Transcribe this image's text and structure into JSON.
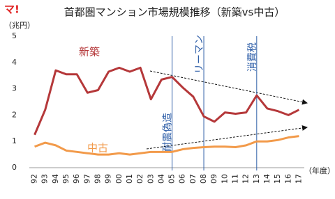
{
  "logo": "マ!",
  "chart_data": {
    "type": "line",
    "title": "首都圏マンション市場規模推移（新築vs中古）",
    "y_label": "（兆円）",
    "x_label": "（年度）",
    "categories": [
      "92",
      "93",
      "94",
      "95",
      "96",
      "97",
      "98",
      "99",
      "00",
      "01",
      "02",
      "03",
      "04",
      "05",
      "06",
      "07",
      "08",
      "09",
      "10",
      "11",
      "12",
      "13",
      "14",
      "15",
      "16",
      "17"
    ],
    "series": [
      {
        "name": "新築",
        "color": "#b5383a",
        "values": [
          1.25,
          2.2,
          3.7,
          3.55,
          3.55,
          2.85,
          2.95,
          3.65,
          3.8,
          3.65,
          3.8,
          2.6,
          3.35,
          3.45,
          3.05,
          2.7,
          1.95,
          1.75,
          2.1,
          2.05,
          2.1,
          2.75,
          2.25,
          2.15,
          2.0,
          2.2
        ]
      },
      {
        "name": "中古",
        "color": "#f29a4a",
        "values": [
          0.8,
          0.95,
          0.85,
          0.65,
          0.6,
          0.55,
          0.5,
          0.5,
          0.55,
          0.5,
          0.55,
          0.6,
          0.6,
          0.6,
          0.7,
          0.75,
          0.78,
          0.8,
          0.8,
          0.78,
          0.85,
          1.0,
          1.0,
          1.05,
          1.15,
          1.2
        ]
      }
    ],
    "events": [
      {
        "category": "05",
        "label": "耐震偽造"
      },
      {
        "category": "08",
        "label": "リーマン"
      },
      {
        "category": "13",
        "label": "消費税"
      }
    ],
    "event_color": "#2f5fa8",
    "ylim": [
      0,
      5
    ],
    "yticks": [
      0,
      1,
      2,
      3,
      4,
      5
    ]
  }
}
